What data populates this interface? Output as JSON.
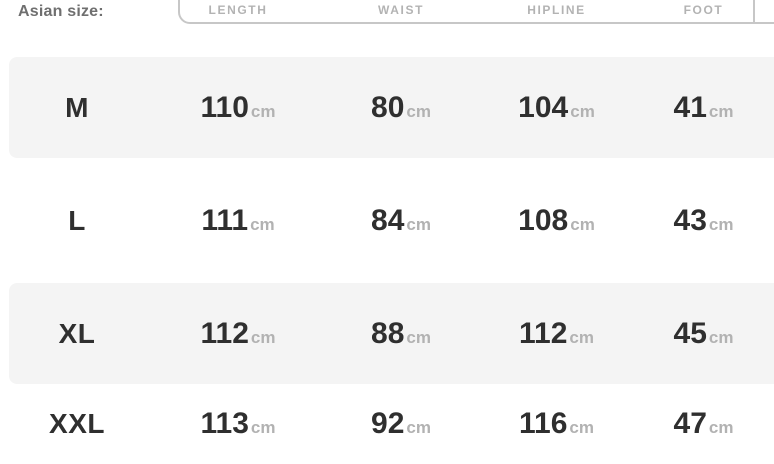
{
  "size_selector": {
    "label": "Asian size:"
  },
  "table": {
    "unit": "cm",
    "columns": [
      "LENGTH",
      "WAIST",
      "HIPLINE",
      "FOOT"
    ],
    "rows": [
      {
        "size": "M",
        "values": [
          "110",
          "80",
          "104",
          "41"
        ]
      },
      {
        "size": "L",
        "values": [
          "111",
          "84",
          "108",
          "43"
        ]
      },
      {
        "size": "XL",
        "values": [
          "112",
          "88",
          "112",
          "45"
        ]
      },
      {
        "size": "XXL",
        "values": [
          "113",
          "92",
          "116",
          "47"
        ]
      }
    ]
  },
  "colors": {
    "row_shade": "#f4f4f4",
    "text_dark": "#2f2f2f",
    "text_muted": "#b2b2b2",
    "header_border": "#c7c7c7",
    "label_gray": "#6f6f6f"
  }
}
